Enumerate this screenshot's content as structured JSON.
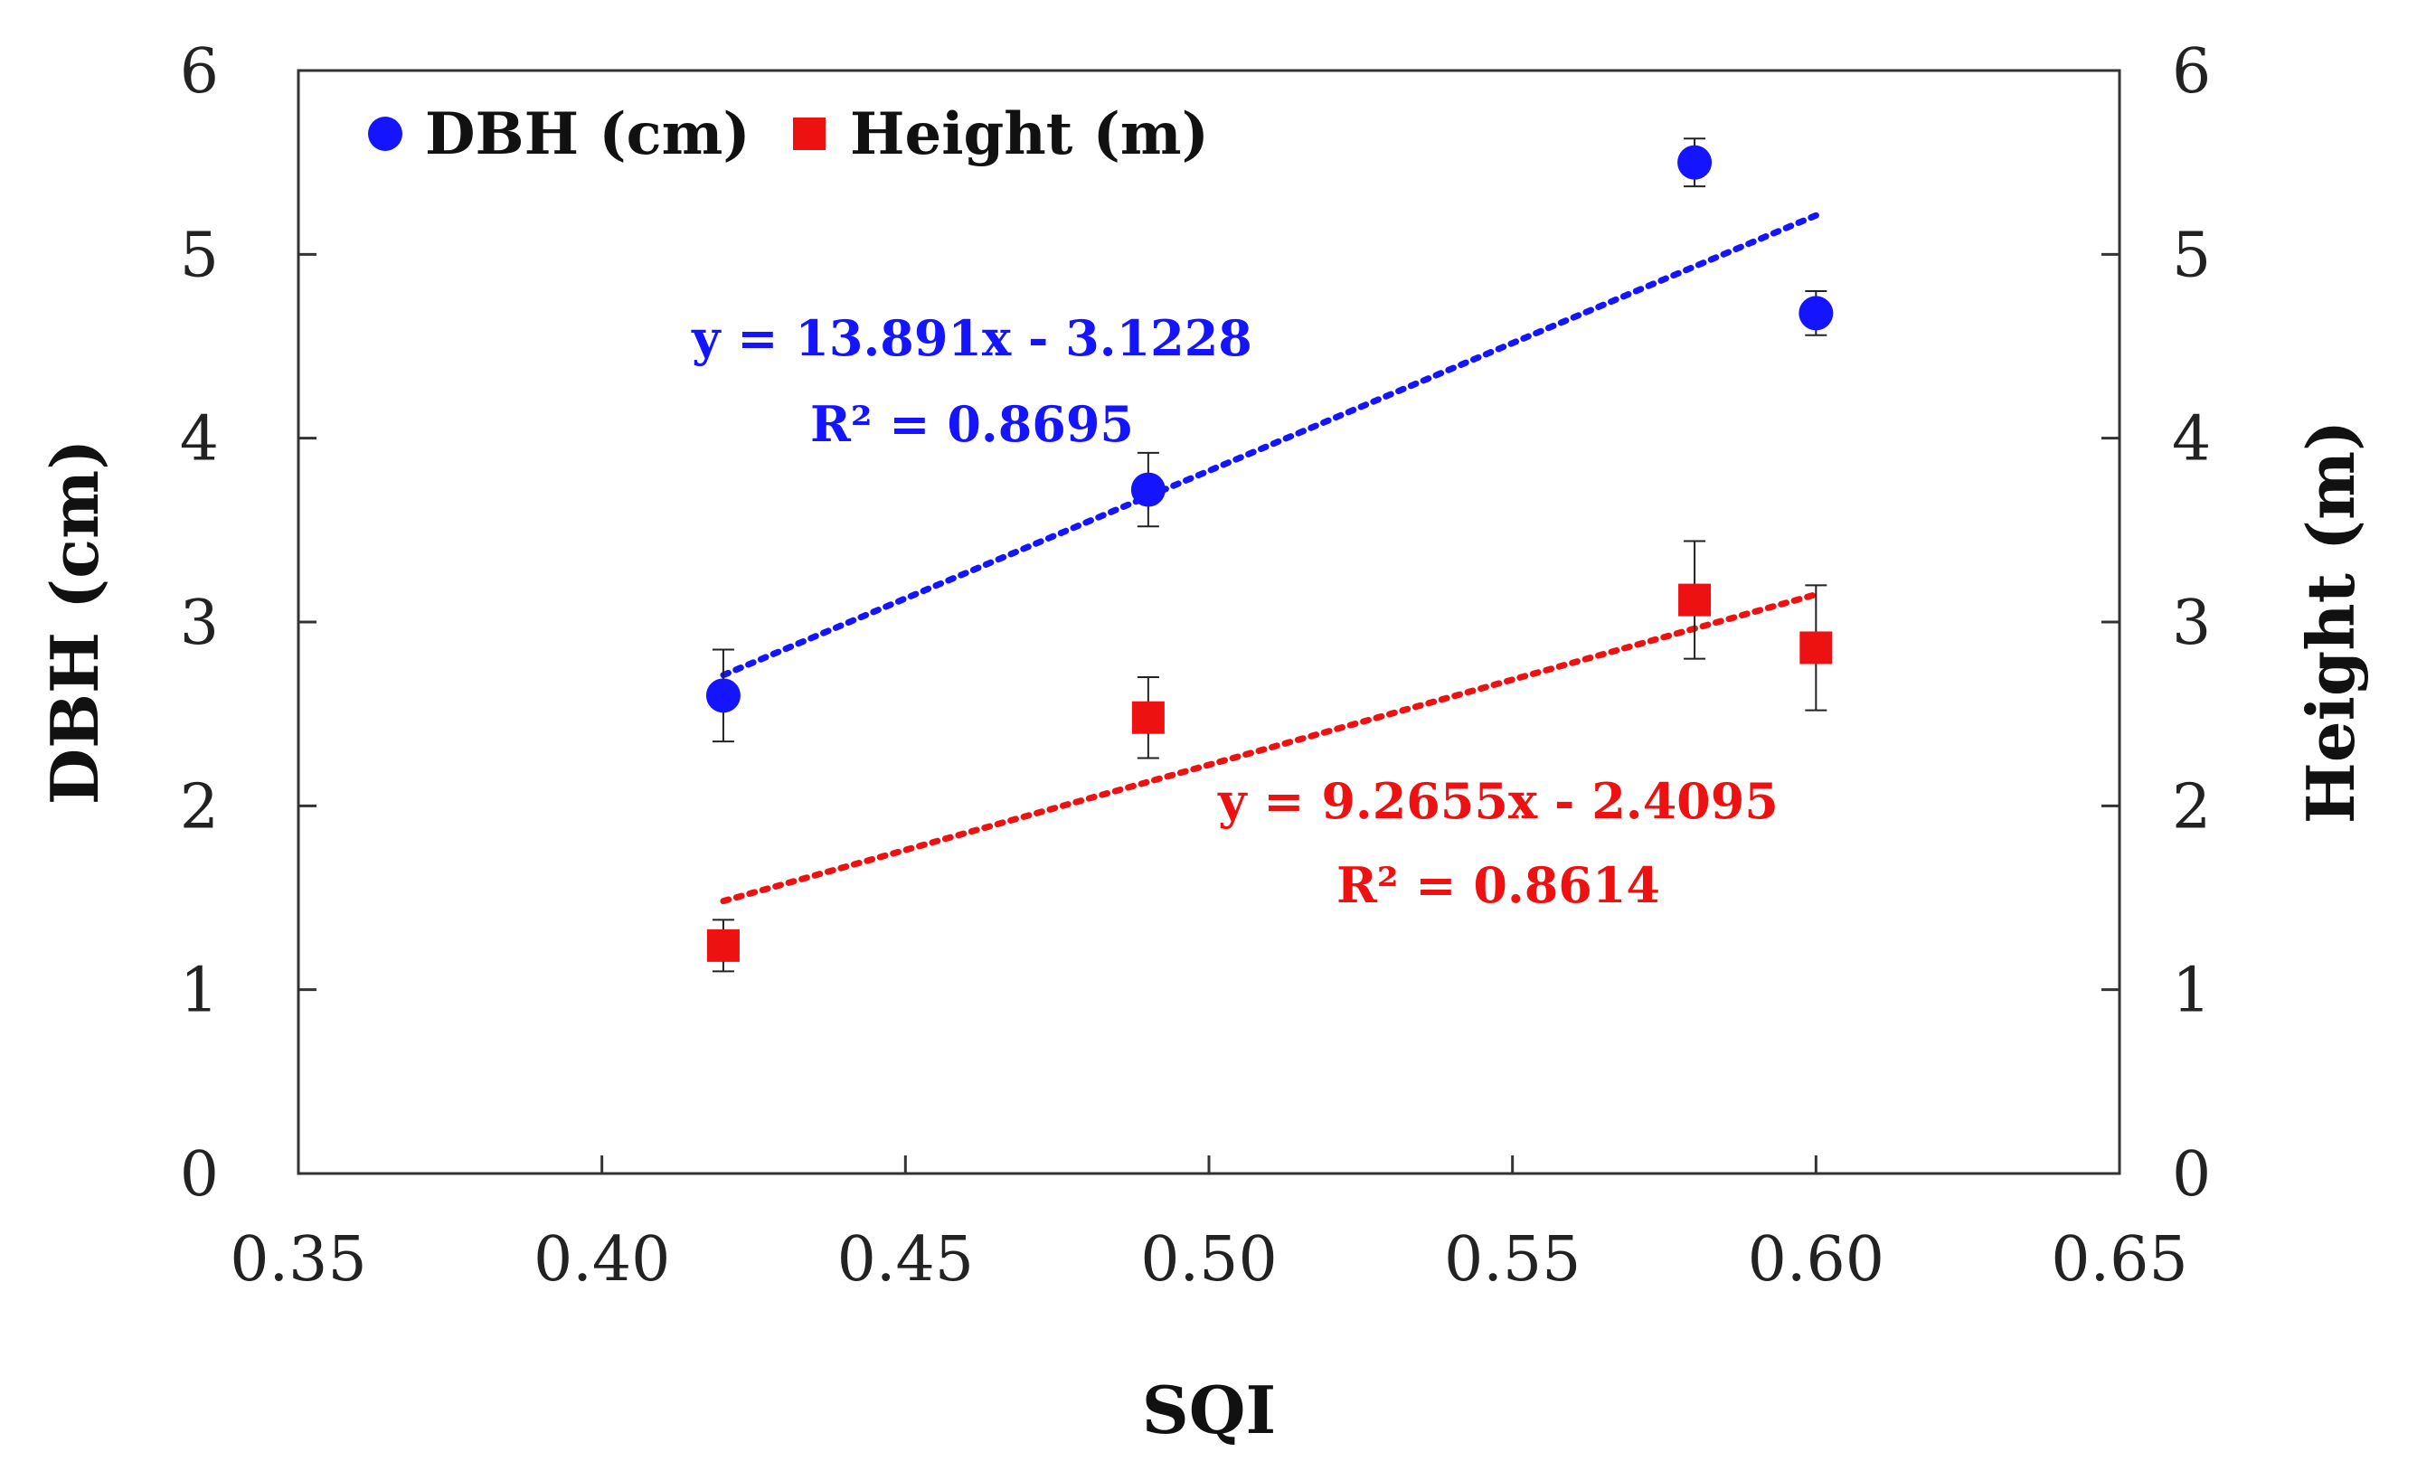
{
  "chart_data": {
    "type": "scatter",
    "x_axis": {
      "label": "SQI",
      "range": [
        0.35,
        0.65
      ],
      "ticks": [
        0.35,
        0.4,
        0.45,
        0.5,
        0.55,
        0.6,
        0.65
      ],
      "tick_labels": [
        "0.35",
        "0.40",
        "0.45",
        "0.50",
        "0.55",
        "0.60",
        "0.65"
      ]
    },
    "y_axis_left": {
      "label": "DBH (cm)",
      "range": [
        0,
        6
      ],
      "ticks": [
        0,
        1,
        2,
        3,
        4,
        5,
        6
      ],
      "tick_labels": [
        "0",
        "1",
        "2",
        "3",
        "4",
        "5",
        "6"
      ]
    },
    "y_axis_right": {
      "label": "Height (m)",
      "range": [
        0,
        6
      ],
      "ticks": [
        0,
        1,
        2,
        3,
        4,
        5,
        6
      ],
      "tick_labels": [
        "0",
        "1",
        "2",
        "3",
        "4",
        "5",
        "6"
      ]
    },
    "legend": {
      "position": "top-left"
    },
    "series": [
      {
        "name": "DBH (cm)",
        "marker": "circle",
        "axis": "left",
        "color": "#1414ff",
        "x": [
          0.42,
          0.49,
          0.58,
          0.6
        ],
        "y": [
          2.6,
          3.72,
          5.5,
          4.68
        ],
        "err": [
          0.25,
          0.2,
          0.13,
          0.12
        ],
        "trendline": {
          "slope": 13.891,
          "intercept": -3.1228,
          "x_range": [
            0.42,
            0.6
          ],
          "equation": "y = 13.891x - 3.1228",
          "r2": "R² = 0.8695"
        }
      },
      {
        "name": "Height (m)",
        "marker": "square",
        "axis": "right",
        "color": "#ee1111",
        "x": [
          0.42,
          0.49,
          0.58,
          0.6
        ],
        "y": [
          1.24,
          2.48,
          3.12,
          2.86
        ],
        "err": [
          0.14,
          0.22,
          0.32,
          0.34
        ],
        "trendline": {
          "slope": 9.2655,
          "intercept": -2.4095,
          "x_range": [
            0.42,
            0.6
          ],
          "equation": "y = 9.2655x - 2.4095",
          "r2": "R² = 0.8614"
        }
      }
    ]
  }
}
